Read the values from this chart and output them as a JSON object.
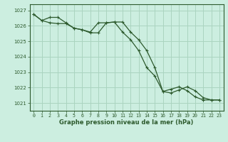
{
  "title": "Graphe pression niveau de la mer (hPa)",
  "background_color": "#cceee0",
  "grid_color": "#aad4c0",
  "line_color": "#2d5a2d",
  "xlim": [
    -0.5,
    23.5
  ],
  "ylim": [
    1020.5,
    1027.4
  ],
  "yticks": [
    1021,
    1022,
    1023,
    1024,
    1025,
    1026,
    1027
  ],
  "xticks": [
    0,
    1,
    2,
    3,
    4,
    5,
    6,
    7,
    8,
    9,
    10,
    11,
    12,
    13,
    14,
    15,
    16,
    17,
    18,
    19,
    20,
    21,
    22,
    23
  ],
  "line1_x": [
    0,
    1,
    2,
    3,
    4,
    5,
    6,
    7,
    8,
    9,
    10,
    11,
    12,
    13,
    14,
    15,
    16,
    17,
    18,
    19,
    20,
    21,
    22,
    23
  ],
  "line1_y": [
    1026.75,
    1026.35,
    1026.2,
    1026.15,
    1026.15,
    1025.85,
    1025.75,
    1025.6,
    1026.2,
    1026.2,
    1026.25,
    1025.6,
    1025.1,
    1024.4,
    1023.3,
    1022.75,
    1021.75,
    1021.9,
    1022.05,
    1021.8,
    1021.4,
    1021.2,
    1021.2,
    1021.2
  ],
  "line2_x": [
    0,
    1,
    2,
    3,
    4,
    5,
    6,
    7,
    8,
    9,
    10,
    11,
    12,
    13,
    14,
    15,
    16,
    17,
    18,
    19,
    20,
    21,
    22,
    23
  ],
  "line2_y": [
    1026.75,
    1026.35,
    1026.55,
    1026.55,
    1026.2,
    1025.85,
    1025.75,
    1025.55,
    1025.55,
    1026.2,
    1026.25,
    1026.25,
    1025.6,
    1025.1,
    1024.4,
    1023.3,
    1021.75,
    1021.65,
    1021.85,
    1022.05,
    1021.8,
    1021.35,
    1021.2,
    1021.2
  ],
  "ylabel_fontsize": 5.5,
  "xlabel_fontsize": 6.0,
  "title_fontsize": 7.0
}
